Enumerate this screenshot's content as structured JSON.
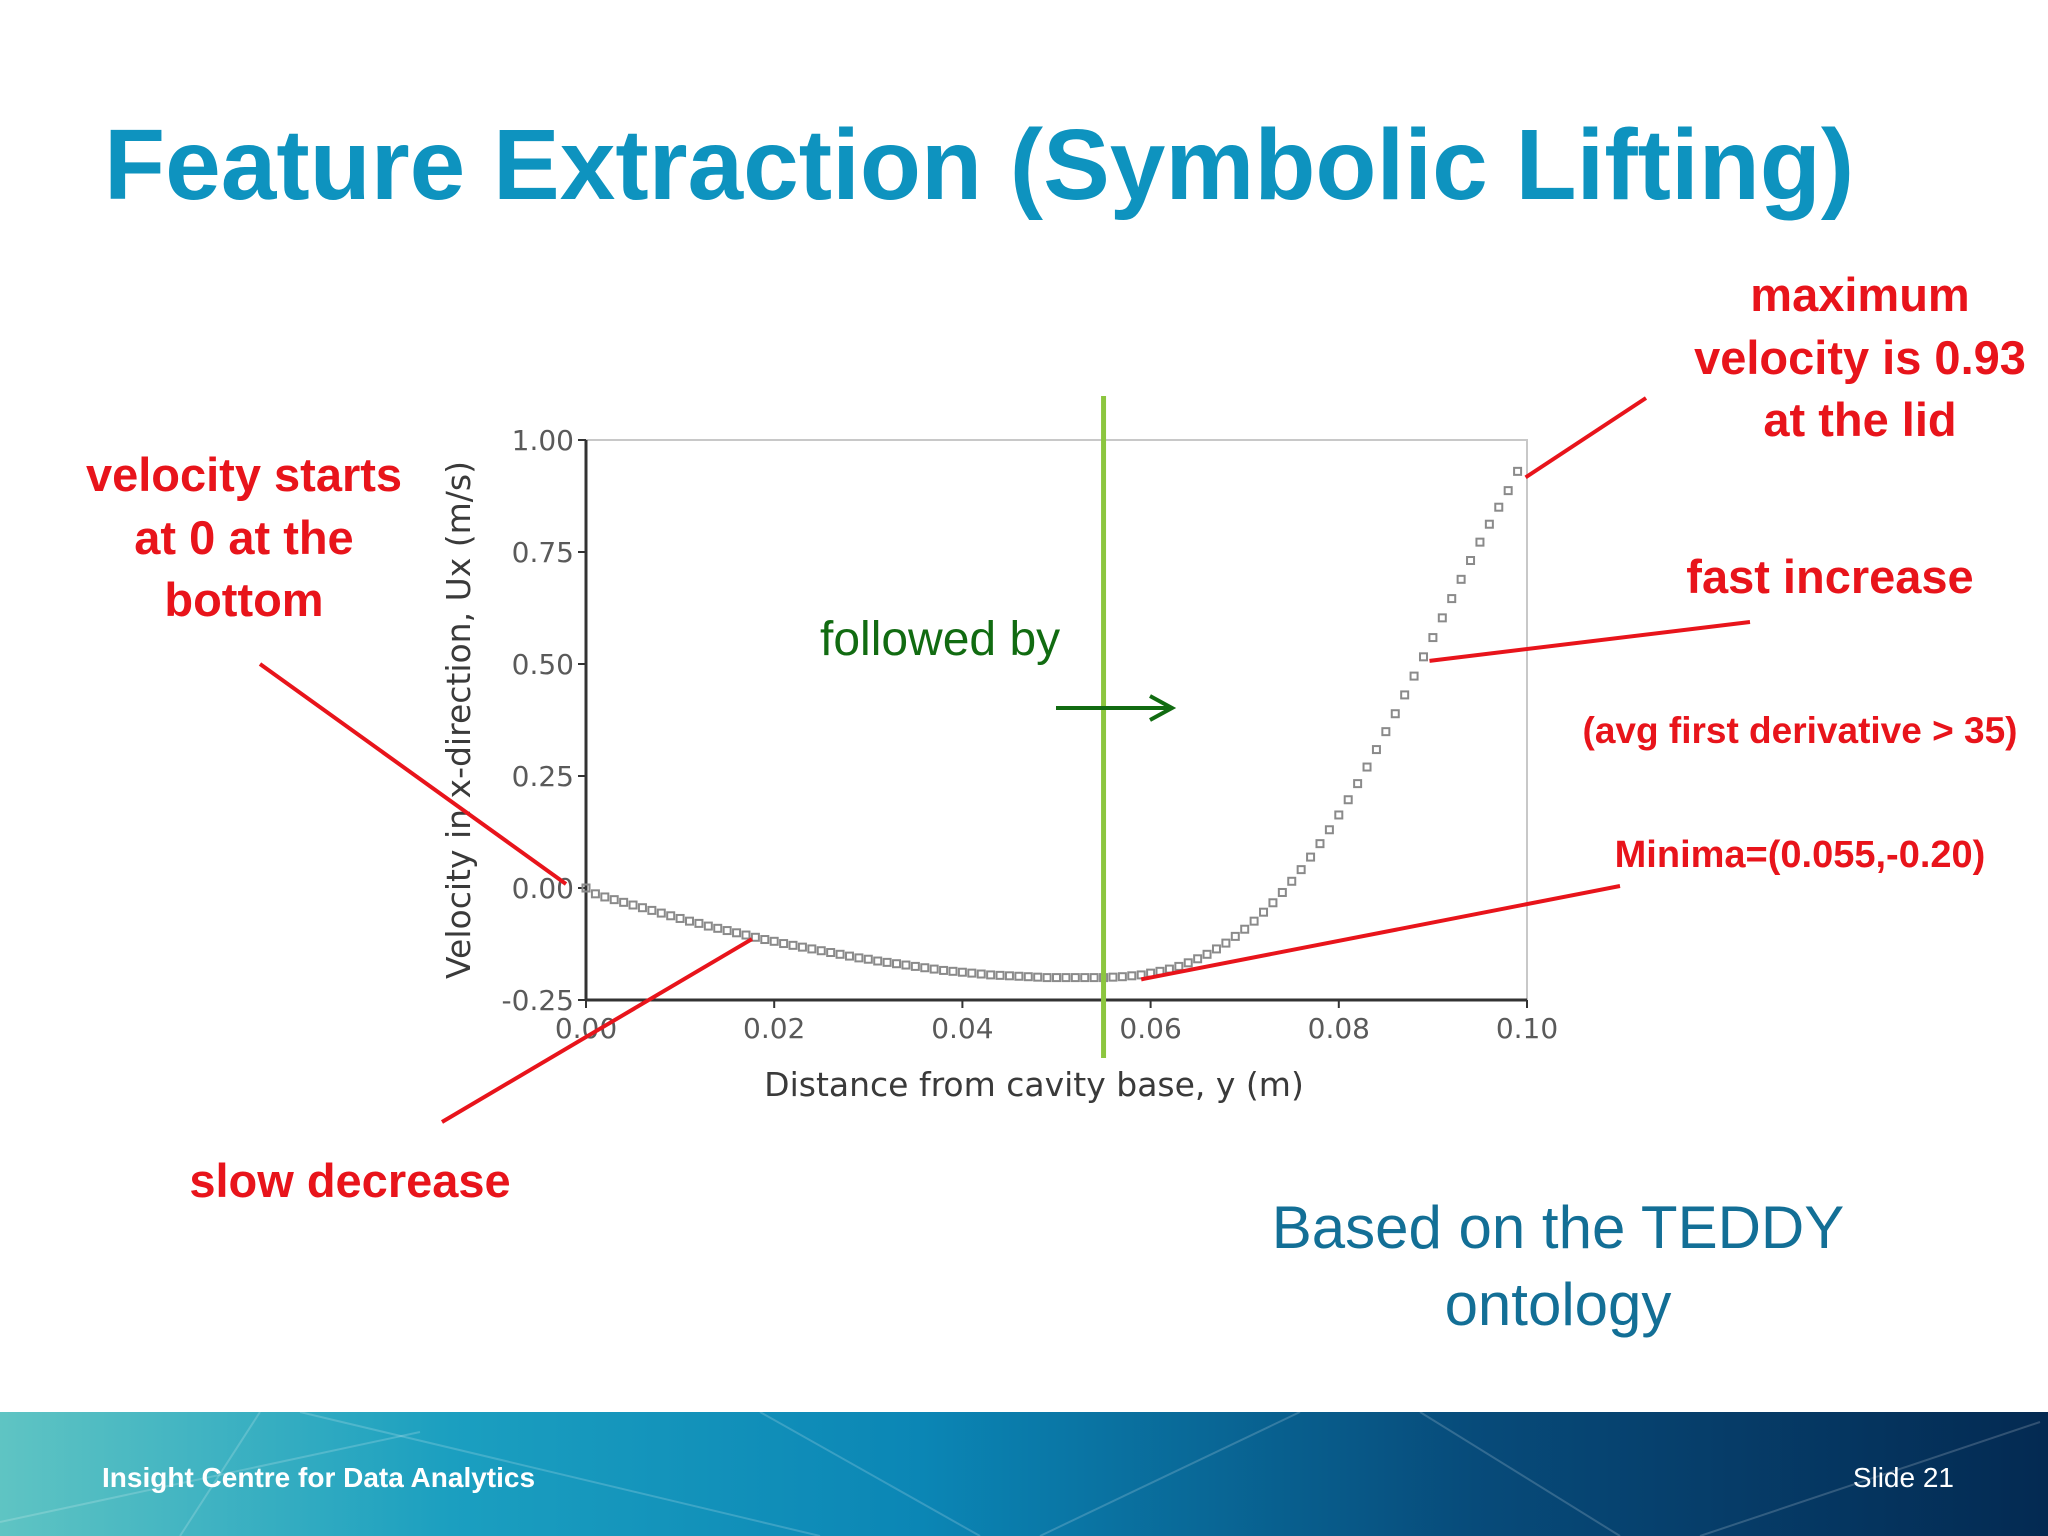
{
  "slide": {
    "title": "Feature Extraction (Symbolic Lifting)",
    "footer_org": "Insight Centre for Data Analytics",
    "footer_slide": "Slide 21",
    "note": [
      "Based on the TEDDY",
      "ontology"
    ]
  },
  "annotations": {
    "start": [
      "velocity starts",
      "at 0 at the",
      "bottom"
    ],
    "max": [
      "maximum",
      "velocity is 0.93",
      "at the lid"
    ],
    "fast": "fast increase",
    "derivative": "(avg first derivative > 35)",
    "minima": "Minima=(0.055,-0.20)",
    "slow": "slow decrease",
    "followed_by": "followed by"
  },
  "colors": {
    "title": "#0e93bf",
    "annotation": "#e8141b",
    "followed": "#116b11",
    "divider": "#8cc63f",
    "marker": "#8a8a8a"
  },
  "chart_data": {
    "type": "scatter",
    "xlabel": "Distance from cavity base, y (m)",
    "ylabel": "Velocity in x-direction, Ux (m/s)",
    "xlim": [
      0,
      0.1
    ],
    "ylim": [
      -0.25,
      1.0
    ],
    "xticks": [
      "0.00",
      "0.02",
      "0.04",
      "0.06",
      "0.08",
      "0.10"
    ],
    "yticks": [
      "-0.25",
      "0.00",
      "0.25",
      "0.50",
      "0.75",
      "1.00"
    ],
    "divider_x": 0.055,
    "minimum": [
      0.055,
      -0.2
    ],
    "maximum": [
      0.099,
      0.93
    ],
    "x": [
      0.0,
      0.001,
      0.002,
      0.003,
      0.004,
      0.005,
      0.006,
      0.007,
      0.008,
      0.009,
      0.01,
      0.011,
      0.012,
      0.013,
      0.014,
      0.015,
      0.016,
      0.017,
      0.018,
      0.019,
      0.02,
      0.021,
      0.022,
      0.023,
      0.024,
      0.025,
      0.026,
      0.027,
      0.028,
      0.029,
      0.03,
      0.031,
      0.032,
      0.033,
      0.034,
      0.035,
      0.036,
      0.037,
      0.038,
      0.039,
      0.04,
      0.041,
      0.042,
      0.043,
      0.044,
      0.045,
      0.046,
      0.047,
      0.048,
      0.049,
      0.05,
      0.051,
      0.052,
      0.053,
      0.054,
      0.055,
      0.056,
      0.057,
      0.058,
      0.059,
      0.06,
      0.061,
      0.062,
      0.063,
      0.064,
      0.065,
      0.066,
      0.067,
      0.068,
      0.069,
      0.07,
      0.071,
      0.072,
      0.073,
      0.074,
      0.075,
      0.076,
      0.077,
      0.078,
      0.079,
      0.08,
      0.081,
      0.082,
      0.083,
      0.084,
      0.085,
      0.086,
      0.087,
      0.088,
      0.089,
      0.09,
      0.091,
      0.092,
      0.093,
      0.094,
      0.095,
      0.096,
      0.097,
      0.098,
      0.099
    ],
    "y": [
      0.0,
      -0.013,
      -0.02,
      -0.026,
      -0.032,
      -0.038,
      -0.044,
      -0.05,
      -0.056,
      -0.062,
      -0.068,
      -0.074,
      -0.079,
      -0.085,
      -0.09,
      -0.095,
      -0.1,
      -0.105,
      -0.11,
      -0.115,
      -0.119,
      -0.124,
      -0.128,
      -0.132,
      -0.136,
      -0.14,
      -0.144,
      -0.148,
      -0.152,
      -0.156,
      -0.159,
      -0.163,
      -0.166,
      -0.169,
      -0.172,
      -0.175,
      -0.178,
      -0.181,
      -0.184,
      -0.186,
      -0.188,
      -0.19,
      -0.192,
      -0.194,
      -0.195,
      -0.196,
      -0.197,
      -0.198,
      -0.199,
      -0.2,
      -0.2,
      -0.2,
      -0.2,
      -0.2,
      -0.2,
      -0.2,
      -0.199,
      -0.198,
      -0.196,
      -0.194,
      -0.19,
      -0.186,
      -0.181,
      -0.175,
      -0.167,
      -0.158,
      -0.148,
      -0.136,
      -0.123,
      -0.108,
      -0.092,
      -0.074,
      -0.054,
      -0.033,
      -0.01,
      0.015,
      0.041,
      0.069,
      0.099,
      0.13,
      0.163,
      0.197,
      0.233,
      0.27,
      0.309,
      0.349,
      0.389,
      0.431,
      0.473,
      0.516,
      0.559,
      0.603,
      0.646,
      0.689,
      0.731,
      0.772,
      0.812,
      0.85,
      0.887,
      0.93
    ]
  }
}
